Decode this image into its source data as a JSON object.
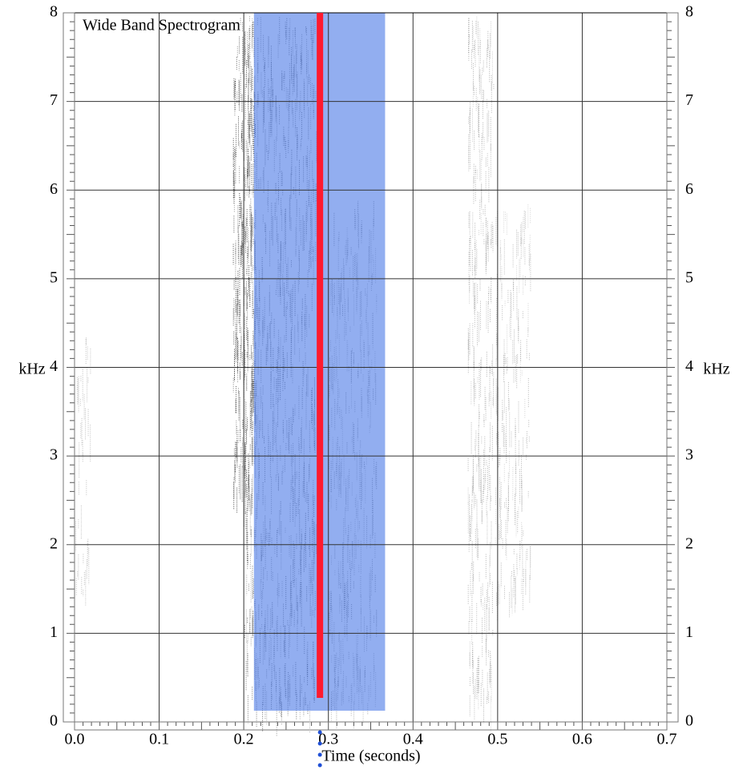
{
  "chart_data": {
    "type": "spectrogram",
    "title": "Wide Band Spectrogram",
    "x_label": "Time (seconds)",
    "y_label": "kHz",
    "xlim": [
      0,
      0.7
    ],
    "xticks": [
      {
        "value": 0,
        "label": "0.0"
      },
      0.1,
      0.2,
      0.3,
      0.4,
      0.5,
      0.6,
      0.7
    ],
    "ylim": [
      0,
      8
    ],
    "yticks": [
      0,
      1,
      2,
      3,
      4,
      5,
      6,
      7,
      8
    ],
    "grid": true,
    "selection": [
      0.212,
      0.367
    ],
    "selection_color": "#4a78e6",
    "cursor": 0.29,
    "cursor_color": "#ff1a2e"
  }
}
